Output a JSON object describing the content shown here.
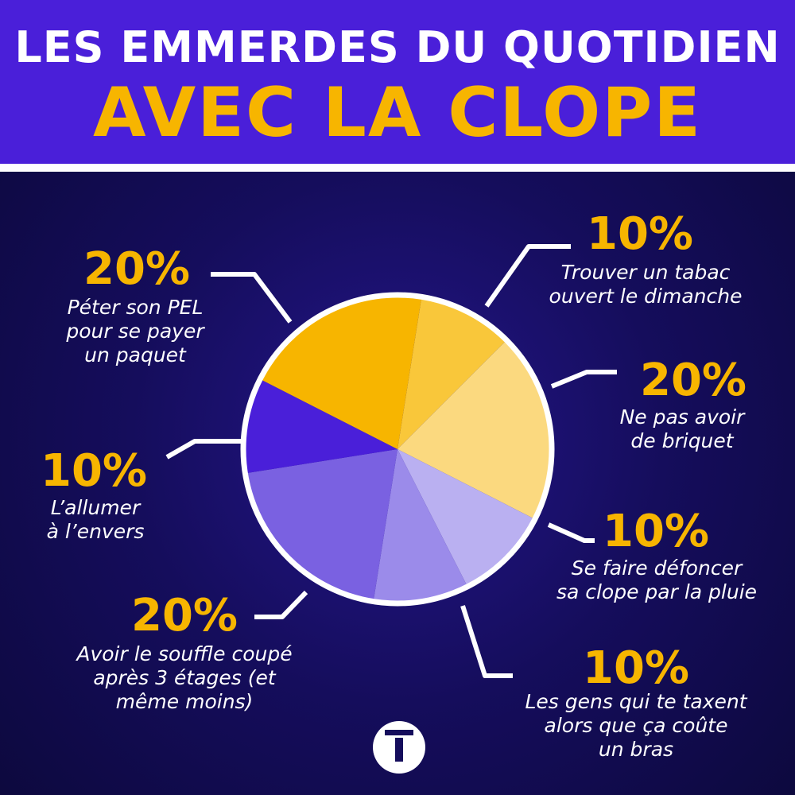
{
  "chart_data": {
    "type": "pie",
    "title": "LES EMMERDES DU QUOTIDIEN",
    "subtitle": "AVEC LA CLOPE",
    "categories": [
      "Trouver un tabac\nouvert le dimanche",
      "Ne pas avoir\nde briquet",
      "Se faire défoncer\nsa clope par la pluie",
      "Les gens qui te taxent\nalors que ça coûte\nun bras",
      "Avoir le souffle coupé\naprès 3 étages (et\nmême moins)",
      "L’allumer\nà l’envers",
      "Péter son PEL\npour se payer\nun paquet"
    ],
    "values": [
      10,
      20,
      10,
      10,
      20,
      10,
      20
    ],
    "value_labels": [
      "10%",
      "20%",
      "10%",
      "10%",
      "20%",
      "10%",
      "20%"
    ],
    "colors": [
      "#f9c73a",
      "#fbd97f",
      "#bab0f1",
      "#9b8bea",
      "#7a61e1",
      "#4a1fd9",
      "#f7b500"
    ]
  }
}
